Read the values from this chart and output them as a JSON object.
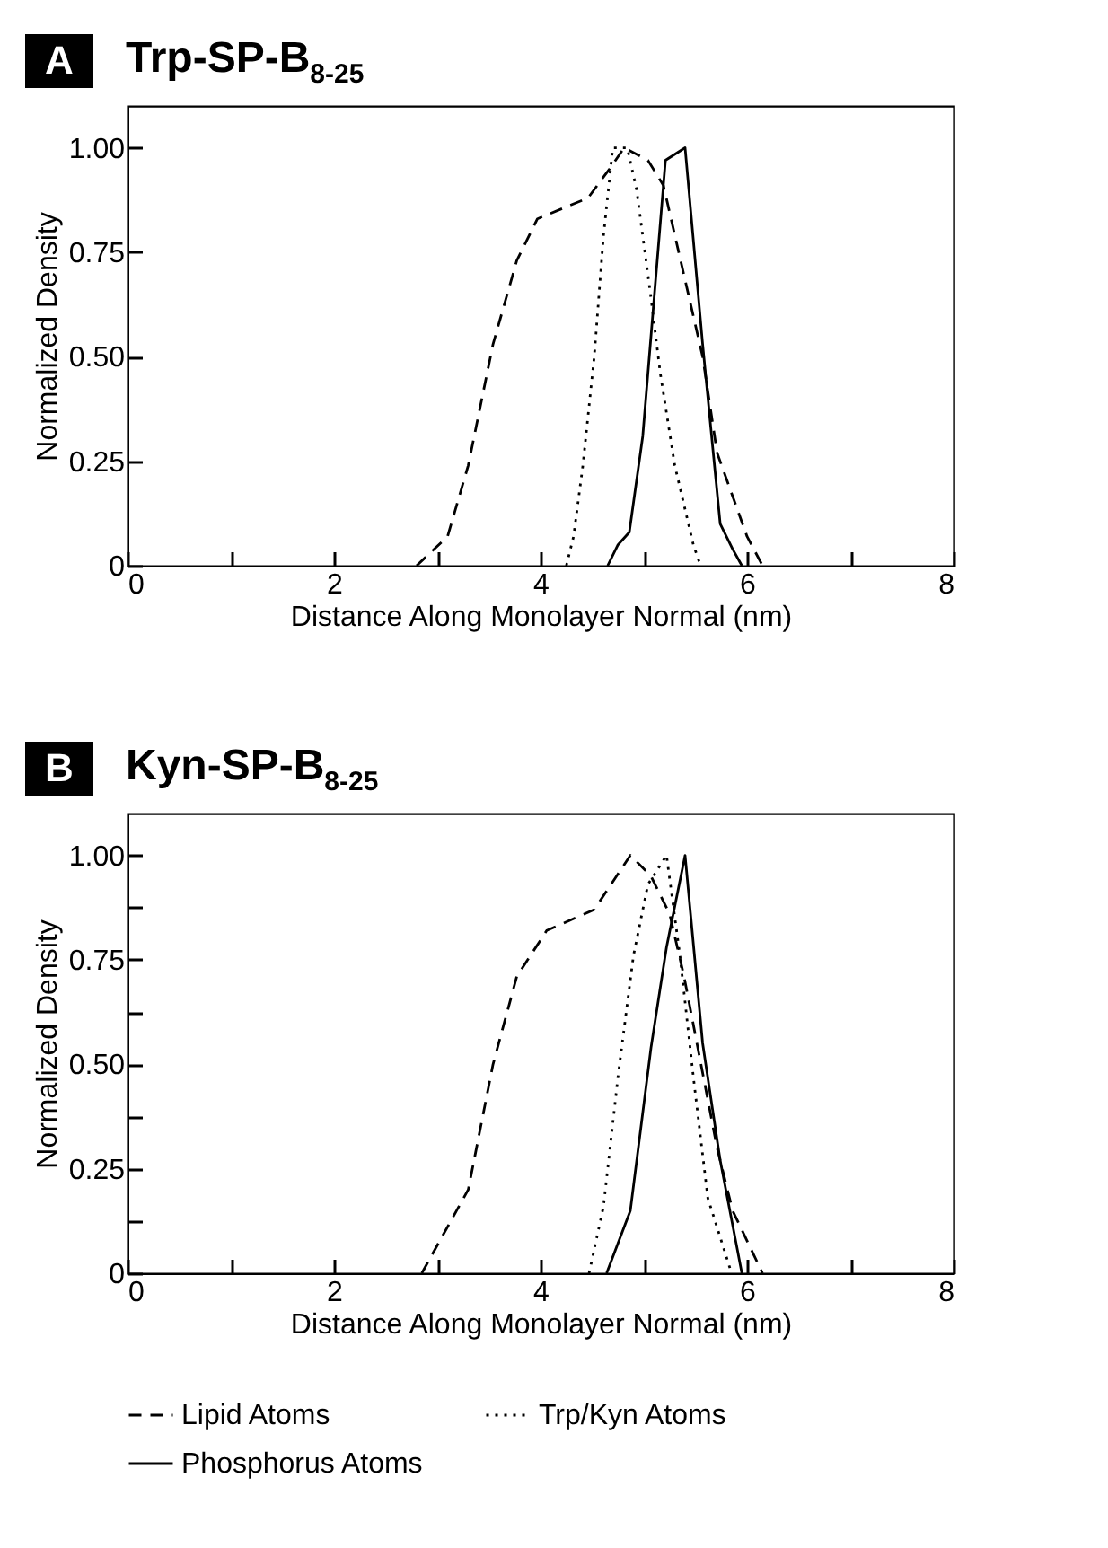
{
  "chart_data": [
    {
      "type": "line",
      "title": "Trp-SP-B$_{8-25}$",
      "annotations": [
        "A"
      ],
      "xlabel": "Distance Along Monolayer Normal (nm)",
      "ylabel": "Normalized Density",
      "xlim": [
        0,
        8
      ],
      "ylim": [
        0,
        1.1
      ],
      "xticks": [
        0,
        {
          "value": 1,
          "label": null
        },
        2,
        {
          "value": 3,
          "label": null
        },
        4,
        {
          "value": 5,
          "label": null
        },
        6,
        {
          "value": 7,
          "label": null
        },
        8
      ],
      "yticks": [
        0,
        {
          "value": 0.25,
          "label": "0.25"
        },
        {
          "value": 0.5,
          "label": "0.50"
        },
        {
          "value": 0.75,
          "label": "0.75"
        },
        {
          "value": 1,
          "label": "1.00"
        }
      ],
      "grid": false,
      "legend": false,
      "series": [
        {
          "color": "#000000",
          "line_style": "dashed",
          "x": [
            2.8,
            3.1,
            3.3,
            3.54,
            3.77,
            3.97,
            4.46,
            4.67,
            4.81,
            5.04,
            5.19,
            5.57,
            5.71,
            6.0,
            6.15
          ],
          "values": [
            0,
            0.07,
            0.24,
            0.53,
            0.73,
            0.83,
            0.88,
            0.95,
            1.0,
            0.97,
            0.91,
            0.5,
            0.27,
            0.07,
            0
          ]
        },
        {
          "color": "#000000",
          "line_style": "dotted",
          "x": [
            4.25,
            4.32,
            4.41,
            4.52,
            4.61,
            4.7,
            4.84,
            4.93,
            5.07,
            5.16,
            5.3,
            5.48,
            5.55
          ],
          "values": [
            0,
            0.07,
            0.24,
            0.5,
            0.79,
            1.0,
            1.0,
            0.9,
            0.64,
            0.46,
            0.24,
            0.05,
            0
          ]
        },
        {
          "color": "#000000",
          "line_style": "solid",
          "x": [
            4.65,
            4.75,
            4.86,
            4.99,
            5.1,
            5.21,
            5.4,
            5.57,
            5.74,
            5.86,
            5.95
          ],
          "values": [
            0,
            0.05,
            0.08,
            0.31,
            0.64,
            0.97,
            1.0,
            0.53,
            0.1,
            0.04,
            0
          ]
        }
      ]
    },
    {
      "type": "line",
      "title": "Kyn-SP-B$_{8-25}$",
      "annotations": [
        "B"
      ],
      "xlabel": "Distance Along Monolayer Normal (nm)",
      "ylabel": "Normalized Density",
      "xlim": [
        0,
        8
      ],
      "ylim": [
        0,
        1.1
      ],
      "xticks": [
        0,
        {
          "value": 1,
          "label": null
        },
        2,
        {
          "value": 3,
          "label": null
        },
        4,
        {
          "value": 5,
          "label": null
        },
        6,
        {
          "value": 7,
          "label": null
        },
        8
      ],
      "yticks": [
        0,
        {
          "value": 0.125,
          "label": null
        },
        {
          "value": 0.25,
          "label": "0.25"
        },
        {
          "value": 0.375,
          "label": null
        },
        {
          "value": 0.5,
          "label": "0.50"
        },
        {
          "value": 0.625,
          "label": null
        },
        {
          "value": 0.75,
          "label": "0.75"
        },
        {
          "value": 0.875,
          "label": null
        },
        {
          "value": 1,
          "label": "1.00"
        }
      ],
      "grid": false,
      "legend": "bottom",
      "series": [
        {
          "name": "Lipid Atoms",
          "color": "#000000",
          "line_style": "dashed",
          "x": [
            2.85,
            3.3,
            3.54,
            3.77,
            4.06,
            4.52,
            4.87,
            5.07,
            5.25,
            5.39,
            5.71,
            5.86,
            6.15
          ],
          "values": [
            0,
            0.2,
            0.5,
            0.71,
            0.82,
            0.87,
            1.0,
            0.95,
            0.86,
            0.71,
            0.3,
            0.15,
            0
          ]
        },
        {
          "name": "Trp/Kyn Atoms",
          "color": "#000000",
          "line_style": "dotted",
          "x": [
            4.47,
            4.61,
            4.75,
            4.9,
            5.04,
            5.22,
            5.35,
            5.48,
            5.62,
            5.85
          ],
          "values": [
            0,
            0.16,
            0.47,
            0.76,
            0.93,
            1.0,
            0.76,
            0.47,
            0.18,
            0
          ]
        },
        {
          "name": "Phosphorus Atoms",
          "color": "#000000",
          "line_style": "solid",
          "x": [
            4.64,
            4.87,
            5.07,
            5.22,
            5.4,
            5.57,
            5.74,
            5.95
          ],
          "values": [
            0,
            0.15,
            0.54,
            0.78,
            1.0,
            0.55,
            0.27,
            0
          ]
        }
      ]
    }
  ]
}
